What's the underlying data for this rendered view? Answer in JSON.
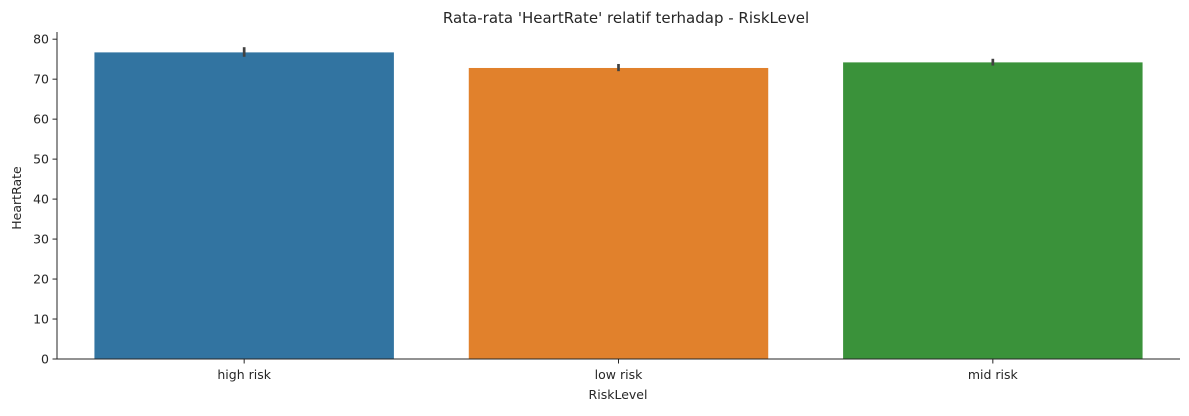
{
  "chart_data": {
    "type": "bar",
    "title": "Rata-rata 'HeartRate' relatif terhadap - RiskLevel",
    "xlabel": "RiskLevel",
    "ylabel": "HeartRate",
    "categories": [
      "high risk",
      "low risk",
      "mid risk"
    ],
    "values": [
      76.7,
      72.8,
      74.2
    ],
    "error_low": [
      75.6,
      72.0,
      73.4
    ],
    "error_high": [
      78.0,
      73.8,
      75.1
    ],
    "colors": [
      "#3274a1",
      "#e1812c",
      "#3a923a"
    ],
    "ylim": [
      0,
      81.8
    ],
    "yticks": [
      0,
      10,
      20,
      30,
      40,
      50,
      60,
      70,
      80
    ],
    "grid": false,
    "legend": "none"
  }
}
